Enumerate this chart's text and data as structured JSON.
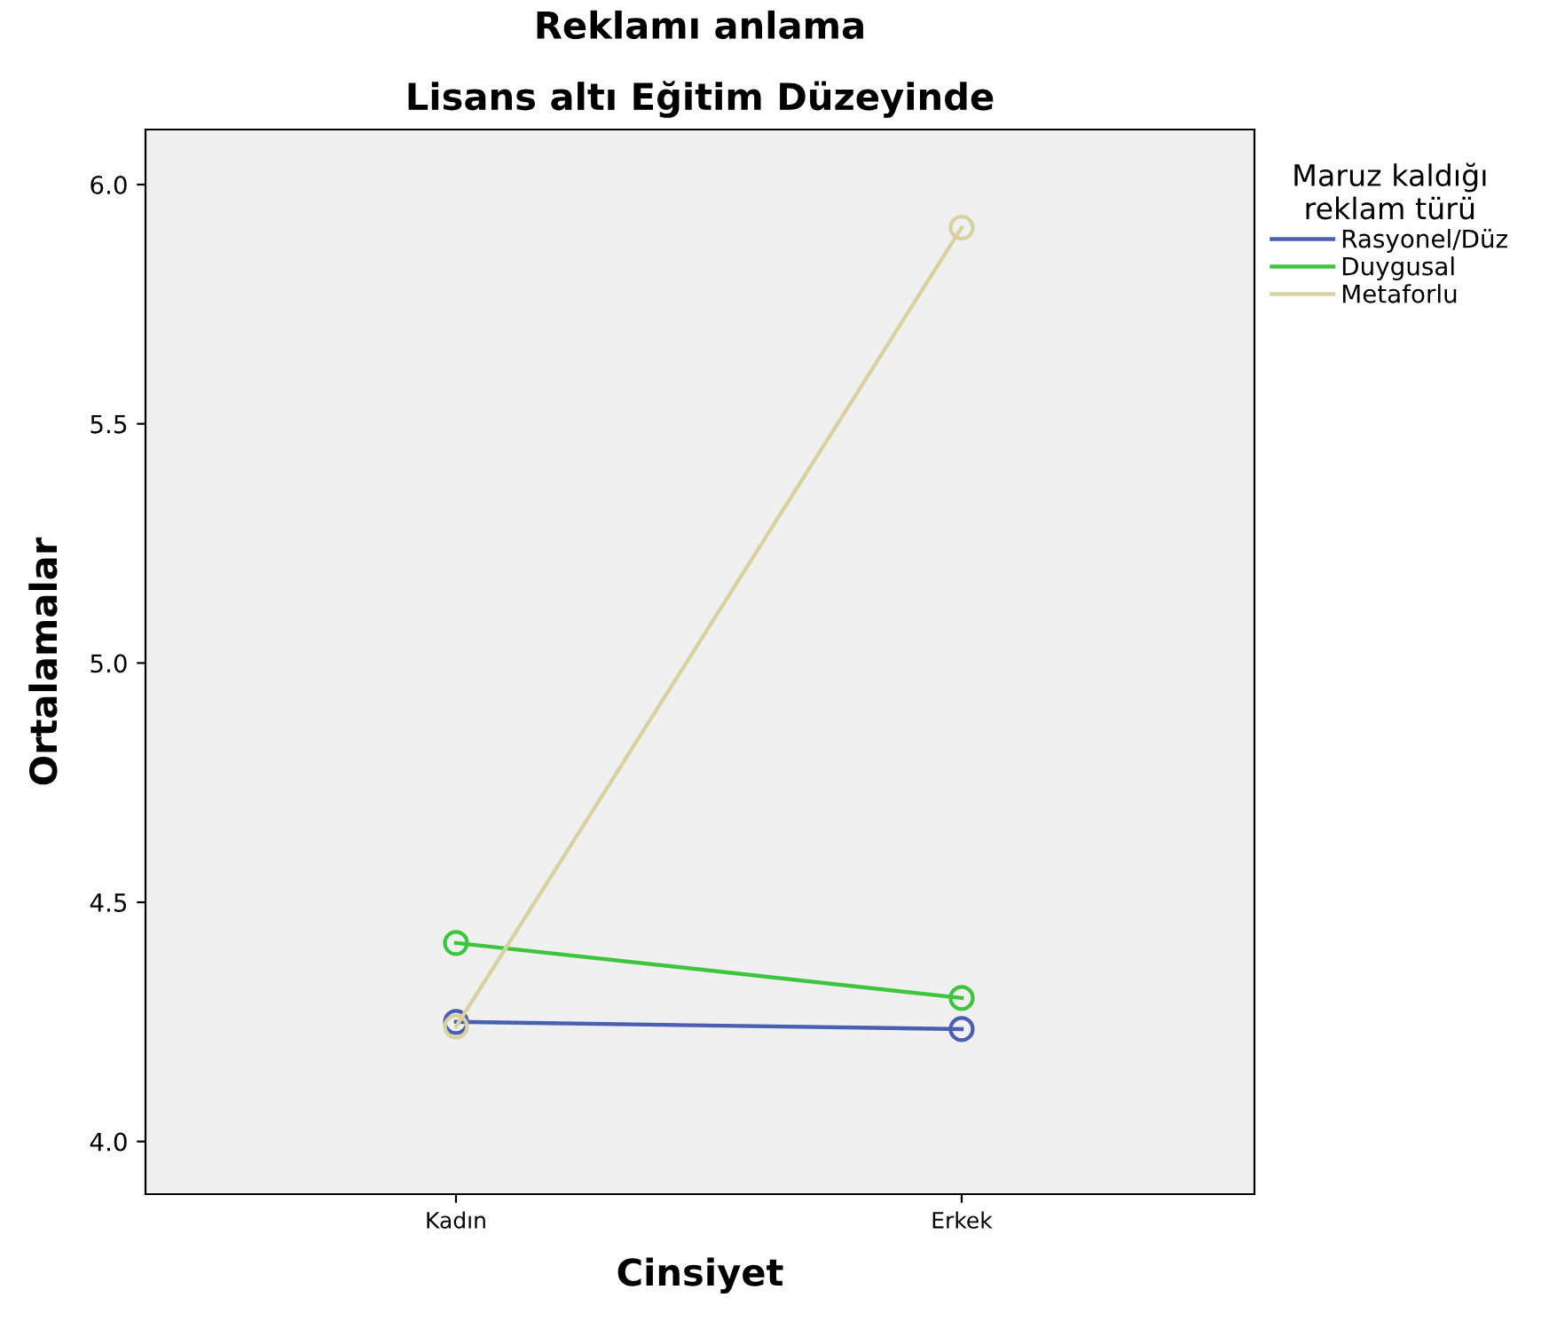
{
  "chart_data": {
    "type": "line",
    "title": "Reklamı anlama",
    "subtitle": "Lisans altı Eğitim Düzeyinde",
    "xlabel": "Cinsiyet",
    "ylabel": "Ortalamalar",
    "legend_title": "Maruz kaldığı\nreklam türü",
    "categories": [
      "Kadın",
      "Erkek"
    ],
    "series": [
      {
        "name": "Rasyonel/Düz",
        "color": "#4a5fb0",
        "values": [
          4.25,
          4.235
        ]
      },
      {
        "name": "Duygusal",
        "color": "#3ec53e",
        "values": [
          4.415,
          4.3
        ]
      },
      {
        "name": "Metaforlu",
        "color": "#d8d2a0",
        "values": [
          4.24,
          5.91
        ]
      }
    ],
    "ylim": [
      3.89,
      6.115
    ],
    "yticks": [
      {
        "value": 4,
        "label": "4.0"
      },
      {
        "value": 4.5,
        "label": "4.5"
      },
      {
        "value": 5,
        "label": "5.0"
      },
      {
        "value": 5.5,
        "label": "5.5"
      },
      {
        "value": 6,
        "label": "6.0"
      }
    ],
    "grid": false,
    "legend": "top right",
    "marker": "circle",
    "line_style": "solid"
  }
}
